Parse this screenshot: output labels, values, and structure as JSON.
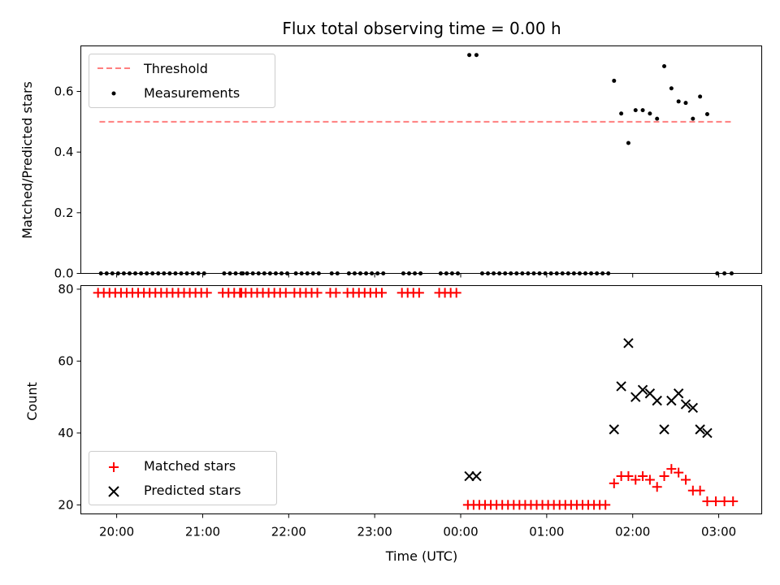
{
  "chart_data": [
    {
      "type": "scatter",
      "title": "Flux total observing time = 0.00 h",
      "xlabel": "",
      "ylabel": "Matched/Predicted stars",
      "ylim": [
        0,
        0.75
      ],
      "yticks": [
        0.0,
        0.2,
        0.4,
        0.6
      ],
      "ytick_labels": [
        "0.0",
        "0.2",
        "0.4",
        "0.6"
      ],
      "xlim": [
        "19:35",
        "03:30"
      ],
      "grid": false,
      "legend_position": "top-left",
      "series": [
        {
          "name": "Threshold",
          "kind": "line",
          "style": "dashed",
          "color": "#ff7f7f",
          "points": [
            [
              "19:48",
              0.5
            ],
            [
              "03:10",
              0.5
            ]
          ]
        },
        {
          "name": "Measurements",
          "kind": "scatter",
          "marker": "dot",
          "color": "#000000",
          "points": [
            [
              "19:49",
              0
            ],
            [
              "19:53",
              0
            ],
            [
              "19:57",
              0
            ],
            [
              "20:01",
              0
            ],
            [
              "20:05",
              0
            ],
            [
              "20:09",
              0
            ],
            [
              "20:13",
              0
            ],
            [
              "20:17",
              0
            ],
            [
              "20:21",
              0
            ],
            [
              "20:25",
              0
            ],
            [
              "20:29",
              0
            ],
            [
              "20:33",
              0
            ],
            [
              "20:37",
              0
            ],
            [
              "20:41",
              0
            ],
            [
              "20:45",
              0
            ],
            [
              "20:49",
              0
            ],
            [
              "20:53",
              0
            ],
            [
              "20:57",
              0
            ],
            [
              "21:01",
              0
            ],
            [
              "21:15",
              0
            ],
            [
              "21:19",
              0
            ],
            [
              "21:23",
              0
            ],
            [
              "21:27",
              0
            ],
            [
              "21:28",
              0
            ],
            [
              "21:31",
              0
            ],
            [
              "21:35",
              0
            ],
            [
              "21:39",
              0
            ],
            [
              "21:43",
              0
            ],
            [
              "21:47",
              0
            ],
            [
              "21:51",
              0
            ],
            [
              "21:55",
              0
            ],
            [
              "21:59",
              0
            ],
            [
              "22:05",
              0
            ],
            [
              "22:09",
              0
            ],
            [
              "22:13",
              0
            ],
            [
              "22:17",
              0
            ],
            [
              "22:21",
              0
            ],
            [
              "22:30",
              0
            ],
            [
              "22:34",
              0
            ],
            [
              "22:42",
              0
            ],
            [
              "22:46",
              0
            ],
            [
              "22:50",
              0
            ],
            [
              "22:54",
              0
            ],
            [
              "22:58",
              0
            ],
            [
              "23:02",
              0
            ],
            [
              "23:06",
              0
            ],
            [
              "23:20",
              0
            ],
            [
              "23:24",
              0
            ],
            [
              "23:28",
              0
            ],
            [
              "23:32",
              0
            ],
            [
              "23:46",
              0
            ],
            [
              "23:50",
              0
            ],
            [
              "23:54",
              0
            ],
            [
              "23:58",
              0
            ],
            [
              "00:06",
              0.72
            ],
            [
              "00:11",
              0.72
            ],
            [
              "00:15",
              0
            ],
            [
              "00:19",
              0
            ],
            [
              "00:23",
              0
            ],
            [
              "00:27",
              0
            ],
            [
              "00:31",
              0
            ],
            [
              "00:35",
              0
            ],
            [
              "00:39",
              0
            ],
            [
              "00:43",
              0
            ],
            [
              "00:47",
              0
            ],
            [
              "00:51",
              0
            ],
            [
              "00:55",
              0
            ],
            [
              "00:59",
              0
            ],
            [
              "01:03",
              0
            ],
            [
              "01:07",
              0
            ],
            [
              "01:11",
              0
            ],
            [
              "01:15",
              0
            ],
            [
              "01:19",
              0
            ],
            [
              "01:23",
              0
            ],
            [
              "01:27",
              0
            ],
            [
              "01:31",
              0
            ],
            [
              "01:35",
              0
            ],
            [
              "01:39",
              0
            ],
            [
              "01:43",
              0
            ],
            [
              "01:47",
              0.635
            ],
            [
              "01:52",
              0.527
            ],
            [
              "01:57",
              0.43
            ],
            [
              "02:02",
              0.538
            ],
            [
              "02:07",
              0.538
            ],
            [
              "02:12",
              0.527
            ],
            [
              "02:17",
              0.51
            ],
            [
              "02:22",
              0.683
            ],
            [
              "02:27",
              0.61
            ],
            [
              "02:32",
              0.567
            ],
            [
              "02:37",
              0.562
            ],
            [
              "02:42",
              0.51
            ],
            [
              "02:47",
              0.583
            ],
            [
              "02:52",
              0.525
            ],
            [
              "02:59",
              0
            ],
            [
              "03:04",
              0
            ],
            [
              "03:09",
              0
            ]
          ]
        }
      ]
    },
    {
      "type": "scatter",
      "title": "",
      "xlabel": "Time (UTC)",
      "ylabel": "Count",
      "ylim": [
        17.5,
        81
      ],
      "yticks": [
        20,
        40,
        60,
        80
      ],
      "ytick_labels": [
        "20",
        "40",
        "60",
        "80"
      ],
      "xlim": [
        "19:35",
        "03:30"
      ],
      "xticks": [
        "20:00",
        "21:00",
        "22:00",
        "23:00",
        "00:00",
        "01:00",
        "02:00",
        "03:00"
      ],
      "grid": false,
      "legend_position": "bottom-left",
      "series": [
        {
          "name": "Matched stars",
          "kind": "scatter",
          "marker": "plus",
          "color": "#ff0000",
          "points": [
            [
              "19:47",
              79
            ],
            [
              "19:51",
              79
            ],
            [
              "19:55",
              79
            ],
            [
              "19:59",
              79
            ],
            [
              "20:03",
              79
            ],
            [
              "20:07",
              79
            ],
            [
              "20:11",
              79
            ],
            [
              "20:15",
              79
            ],
            [
              "20:19",
              79
            ],
            [
              "20:23",
              79
            ],
            [
              "20:27",
              79
            ],
            [
              "20:31",
              79
            ],
            [
              "20:35",
              79
            ],
            [
              "20:39",
              79
            ],
            [
              "20:43",
              79
            ],
            [
              "20:47",
              79
            ],
            [
              "20:51",
              79
            ],
            [
              "20:55",
              79
            ],
            [
              "20:59",
              79
            ],
            [
              "21:03",
              79
            ],
            [
              "21:14",
              79
            ],
            [
              "21:18",
              79
            ],
            [
              "21:22",
              79
            ],
            [
              "21:26",
              79
            ],
            [
              "21:27",
              79
            ],
            [
              "21:30",
              79
            ],
            [
              "21:34",
              79
            ],
            [
              "21:38",
              79
            ],
            [
              "21:42",
              79
            ],
            [
              "21:46",
              79
            ],
            [
              "21:50",
              79
            ],
            [
              "21:54",
              79
            ],
            [
              "21:58",
              79
            ],
            [
              "22:04",
              79
            ],
            [
              "22:08",
              79
            ],
            [
              "22:12",
              79
            ],
            [
              "22:16",
              79
            ],
            [
              "22:20",
              79
            ],
            [
              "22:29",
              79
            ],
            [
              "22:33",
              79
            ],
            [
              "22:41",
              79
            ],
            [
              "22:45",
              79
            ],
            [
              "22:49",
              79
            ],
            [
              "22:53",
              79
            ],
            [
              "22:57",
              79
            ],
            [
              "23:01",
              79
            ],
            [
              "23:05",
              79
            ],
            [
              "23:19",
              79
            ],
            [
              "23:23",
              79
            ],
            [
              "23:27",
              79
            ],
            [
              "23:31",
              79
            ],
            [
              "23:45",
              79
            ],
            [
              "23:49",
              79
            ],
            [
              "23:53",
              79
            ],
            [
              "23:57",
              79
            ],
            [
              "00:05",
              20
            ],
            [
              "00:09",
              20
            ],
            [
              "00:13",
              20
            ],
            [
              "00:17",
              20
            ],
            [
              "00:21",
              20
            ],
            [
              "00:25",
              20
            ],
            [
              "00:29",
              20
            ],
            [
              "00:33",
              20
            ],
            [
              "00:37",
              20
            ],
            [
              "00:41",
              20
            ],
            [
              "00:45",
              20
            ],
            [
              "00:49",
              20
            ],
            [
              "00:53",
              20
            ],
            [
              "00:57",
              20
            ],
            [
              "01:01",
              20
            ],
            [
              "01:05",
              20
            ],
            [
              "01:09",
              20
            ],
            [
              "01:13",
              20
            ],
            [
              "01:17",
              20
            ],
            [
              "01:21",
              20
            ],
            [
              "01:25",
              20
            ],
            [
              "01:29",
              20
            ],
            [
              "01:33",
              20
            ],
            [
              "01:37",
              20
            ],
            [
              "01:41",
              20
            ],
            [
              "01:47",
              26
            ],
            [
              "01:52",
              28
            ],
            [
              "01:57",
              28
            ],
            [
              "02:02",
              27
            ],
            [
              "02:07",
              28
            ],
            [
              "02:12",
              27
            ],
            [
              "02:17",
              25
            ],
            [
              "02:22",
              28
            ],
            [
              "02:27",
              30
            ],
            [
              "02:32",
              29
            ],
            [
              "02:37",
              27
            ],
            [
              "02:42",
              24
            ],
            [
              "02:47",
              24
            ],
            [
              "02:52",
              21
            ],
            [
              "02:58",
              21
            ],
            [
              "03:04",
              21
            ],
            [
              "03:10",
              21
            ]
          ]
        },
        {
          "name": "Predicted stars",
          "kind": "scatter",
          "marker": "x",
          "color": "#000000",
          "points": [
            [
              "00:06",
              28
            ],
            [
              "00:11",
              28
            ],
            [
              "01:47",
              41
            ],
            [
              "01:52",
              53
            ],
            [
              "01:57",
              65
            ],
            [
              "02:02",
              50
            ],
            [
              "02:07",
              52
            ],
            [
              "02:12",
              51
            ],
            [
              "02:17",
              49
            ],
            [
              "02:22",
              41
            ],
            [
              "02:27",
              49
            ],
            [
              "02:32",
              51
            ],
            [
              "02:37",
              48
            ],
            [
              "02:42",
              47
            ],
            [
              "02:47",
              41
            ],
            [
              "02:52",
              40
            ]
          ]
        }
      ]
    }
  ]
}
